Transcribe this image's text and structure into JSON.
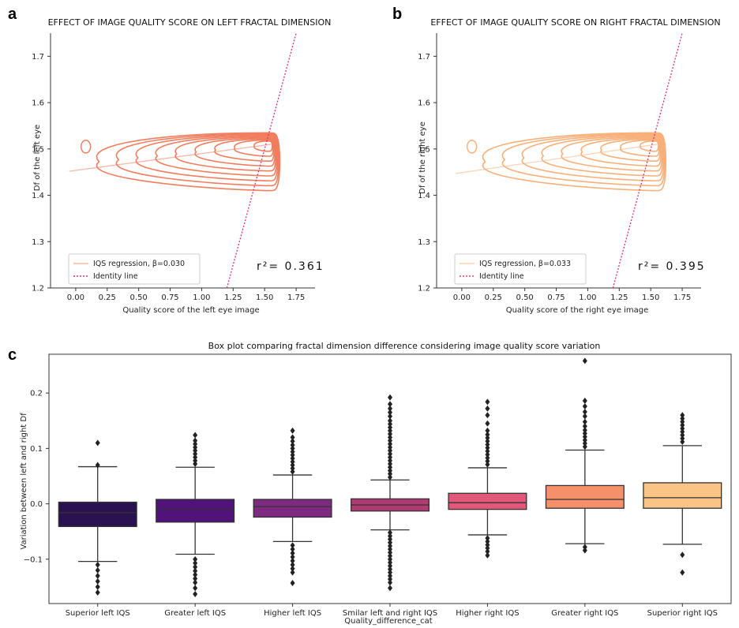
{
  "panels": {
    "a": {
      "letter": "a",
      "title": "EFFECT OF IMAGE QUALITY SCORE ON LEFT FRACTAL DIMENSION",
      "xlabel": "Quality score of the left eye image",
      "ylabel": "Df of the left eye",
      "legend": [
        "IQS regression, β=0.030",
        "Identity line"
      ],
      "r2": "r²=  0.361"
    },
    "b": {
      "letter": "b",
      "title": "EFFECT OF IMAGE QUALITY SCORE ON RIGHT FRACTAL DIMENSION",
      "xlabel": "Quality score of the right eye image",
      "ylabel": "Df of the right eye",
      "legend": [
        "IQS regression, β=0.033",
        "Identity line"
      ],
      "r2": "r²=  0.395"
    },
    "c": {
      "letter": "c",
      "title": "Box plot comparing fractal dimension difference considering image quality score variation",
      "xlabel": "Quality_difference_cat",
      "ylabel": "Variation between left and right Df"
    }
  },
  "colors": {
    "kde_a": "#f07e5e",
    "kde_b": "#f8b07a",
    "identity": "#d6336c",
    "boxes": [
      "#2a1152",
      "#51137a",
      "#7d2a80",
      "#b03a72",
      "#e3577a",
      "#f5906a",
      "#f9c486"
    ]
  },
  "chart_data": [
    {
      "type": "kde-contour",
      "id": "a",
      "xlim": [
        -0.2,
        1.9
      ],
      "ylim": [
        1.2,
        1.75
      ],
      "xticks": [
        "0.00",
        "0.25",
        "0.50",
        "0.75",
        "1.00",
        "1.25",
        "1.50",
        "1.75"
      ],
      "yticks": [
        "1.2",
        "1.3",
        "1.4",
        "1.5",
        "1.6",
        "1.7"
      ],
      "regression": {
        "x": [
          -0.05,
          1.55
        ],
        "y": [
          1.452,
          1.51
        ]
      },
      "identity": {
        "x": [
          1.2,
          1.75
        ],
        "y": [
          1.2,
          1.75
        ]
      },
      "peak": {
        "x": 1.52,
        "y": 1.508
      }
    },
    {
      "type": "kde-contour",
      "id": "b",
      "xlim": [
        -0.2,
        1.9
      ],
      "ylim": [
        1.2,
        1.75
      ],
      "xticks": [
        "0.00",
        "0.25",
        "0.50",
        "0.75",
        "1.00",
        "1.25",
        "1.50",
        "1.75"
      ],
      "yticks": [
        "1.2",
        "1.3",
        "1.4",
        "1.5",
        "1.6",
        "1.7"
      ],
      "regression": {
        "x": [
          -0.05,
          1.55
        ],
        "y": [
          1.447,
          1.51
        ]
      },
      "identity": {
        "x": [
          1.2,
          1.75
        ],
        "y": [
          1.2,
          1.75
        ]
      },
      "peak": {
        "x": 1.52,
        "y": 1.508
      }
    },
    {
      "type": "box",
      "id": "c",
      "ylim": [
        -0.18,
        0.27
      ],
      "yticks": [
        -0.1,
        0.0,
        0.1,
        0.2
      ],
      "ytick_labels": [
        "−0.1",
        "0.0",
        "0.1",
        "0.2"
      ],
      "categories": [
        "Superior left IQS",
        "Greater left IQS",
        "Higher left IQS",
        "Smilar left and right IQS",
        "Higher right IQS",
        "Greater right IQS",
        "Superior right IQS"
      ],
      "boxes": [
        {
          "q1": -0.041,
          "median": -0.016,
          "q3": 0.003,
          "whislo": -0.104,
          "whishi": 0.067,
          "outliers": [
            0.11,
            0.07,
            -0.11,
            -0.12,
            -0.13,
            -0.14,
            -0.15,
            -0.16
          ]
        },
        {
          "q1": -0.033,
          "median": -0.01,
          "q3": 0.008,
          "whislo": -0.091,
          "whishi": 0.066,
          "outliers": [
            0.072,
            0.078,
            0.084,
            0.09,
            0.096,
            0.102,
            0.108,
            0.114,
            0.124,
            -0.1,
            -0.107,
            -0.114,
            -0.121,
            -0.128,
            -0.135,
            -0.142,
            -0.152,
            -0.163
          ]
        },
        {
          "q1": -0.024,
          "median": -0.005,
          "q3": 0.008,
          "whislo": -0.068,
          "whishi": 0.052,
          "outliers": [
            0.058,
            0.064,
            0.07,
            0.076,
            0.082,
            0.088,
            0.094,
            0.1,
            0.106,
            0.113,
            0.12,
            0.132,
            -0.075,
            -0.082,
            -0.089,
            -0.096,
            -0.103,
            -0.11,
            -0.117,
            -0.124,
            -0.143
          ]
        },
        {
          "q1": -0.013,
          "median": -0.002,
          "q3": 0.009,
          "whislo": -0.047,
          "whishi": 0.043,
          "outliers": [
            0.048,
            0.054,
            0.06,
            0.066,
            0.072,
            0.078,
            0.084,
            0.09,
            0.096,
            0.102,
            0.108,
            0.114,
            0.12,
            0.126,
            0.132,
            0.138,
            0.144,
            0.15,
            0.158,
            0.165,
            0.172,
            0.18,
            0.192,
            -0.052,
            -0.058,
            -0.064,
            -0.07,
            -0.076,
            -0.082,
            -0.088,
            -0.094,
            -0.1,
            -0.106,
            -0.112,
            -0.118,
            -0.124,
            -0.13,
            -0.136,
            -0.142,
            -0.152
          ]
        },
        {
          "q1": -0.01,
          "median": 0.002,
          "q3": 0.019,
          "whislo": -0.056,
          "whishi": 0.065,
          "outliers": [
            0.071,
            0.077,
            0.083,
            0.089,
            0.095,
            0.101,
            0.107,
            0.113,
            0.119,
            0.125,
            0.132,
            0.145,
            0.16,
            0.172,
            0.184,
            -0.062,
            -0.068,
            -0.074,
            -0.08,
            -0.086,
            -0.093
          ]
        },
        {
          "q1": -0.008,
          "median": 0.008,
          "q3": 0.033,
          "whislo": -0.072,
          "whishi": 0.097,
          "outliers": [
            0.103,
            0.109,
            0.115,
            0.121,
            0.127,
            0.133,
            0.14,
            0.148,
            0.158,
            0.166,
            0.176,
            0.186,
            0.258,
            -0.078,
            -0.084
          ]
        },
        {
          "q1": -0.008,
          "median": 0.011,
          "q3": 0.038,
          "whislo": -0.073,
          "whishi": 0.105,
          "outliers": [
            0.112,
            0.118,
            0.124,
            0.13,
            0.136,
            0.142,
            0.148,
            0.154,
            0.16,
            -0.092,
            -0.124
          ]
        }
      ]
    }
  ]
}
